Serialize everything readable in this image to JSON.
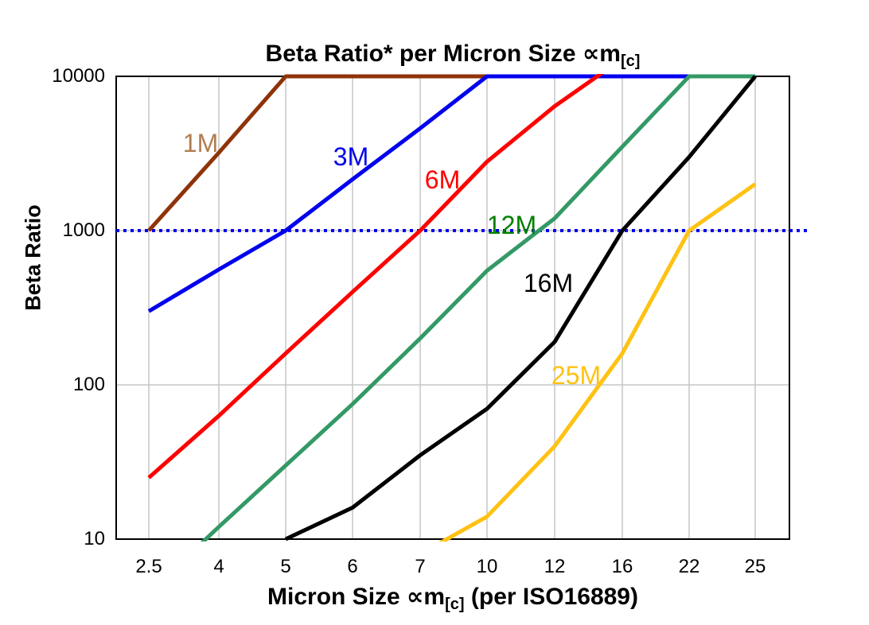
{
  "titles": {
    "main_prefix": "Beta Ratio* per Micron Size ∝m",
    "main_sub": "[c]",
    "y": "Beta Ratio",
    "x_prefix": "Micron Size ∝m",
    "x_sub": "[c]",
    "x_suffix": " (per ISO16889)"
  },
  "chart_data": {
    "type": "line",
    "title": "Beta Ratio* per Micron Size ∝m[c]",
    "xlabel": "Micron Size ∝m[c] (per ISO16889)",
    "ylabel": "Beta Ratio",
    "x_scale": "categorical",
    "y_scale": "log",
    "ylim": [
      10,
      10000
    ],
    "y_ticks": [
      10000,
      1000,
      100,
      10
    ],
    "grid": true,
    "grid_color": "#c6c6c6",
    "frame_color": "#000000",
    "categories": [
      "2.5",
      "4",
      "5",
      "6",
      "7",
      "10",
      "12",
      "16",
      "22",
      "25"
    ],
    "reference_line": {
      "value": 1000,
      "style": "dotted",
      "color": "#0000EE"
    },
    "series": [
      {
        "name": "1M",
        "color": "#8F3308",
        "label_color": "#B07E50",
        "values": [
          1000,
          3200,
          10000,
          10000,
          10000,
          10000,
          null,
          null,
          null,
          null
        ]
      },
      {
        "name": "3M",
        "color": "#0000EE",
        "label_color": "#0000EE",
        "values": [
          300,
          560,
          1000,
          2150,
          4600,
          10000,
          10000,
          10000,
          10000,
          10000
        ]
      },
      {
        "name": "6M",
        "color": "#FF0000",
        "label_color": "#FF0000",
        "values": [
          25,
          63,
          160,
          400,
          1000,
          2800,
          6400,
          13000,
          null,
          null
        ]
      },
      {
        "name": "12M",
        "color": "#339966",
        "label_color": "#008000",
        "values": [
          4.5,
          12,
          30,
          75,
          200,
          550,
          1200,
          3500,
          10000,
          10000
        ]
      },
      {
        "name": "16M",
        "color": "#000000",
        "label_color": "#000000",
        "values": [
          null,
          null,
          10,
          16,
          35,
          70,
          190,
          1000,
          3000,
          10000
        ]
      },
      {
        "name": "25M",
        "color": "#FFC214",
        "label_color": "#FFC214",
        "values": [
          null,
          null,
          null,
          null,
          8,
          14,
          40,
          160,
          1000,
          2000
        ]
      }
    ],
    "legend_position": "inline-labels"
  }
}
